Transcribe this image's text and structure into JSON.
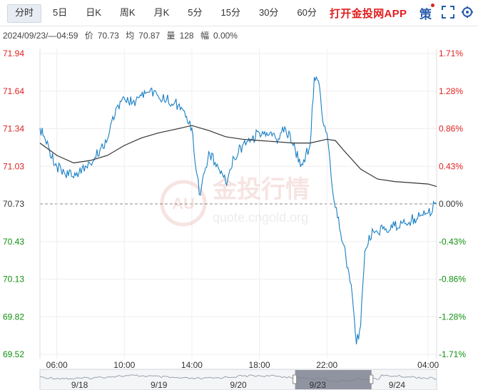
{
  "toolbar": {
    "tabs": [
      {
        "label": "分时",
        "active": true
      },
      {
        "label": "5日",
        "active": false
      },
      {
        "label": "日K",
        "active": false
      },
      {
        "label": "周K",
        "active": false
      },
      {
        "label": "月K",
        "active": false
      },
      {
        "label": "5分",
        "active": false
      },
      {
        "label": "15分",
        "active": false
      },
      {
        "label": "30分",
        "active": false
      },
      {
        "label": "60分",
        "active": false
      }
    ],
    "promo": "打开金投网APP",
    "policy_label": "策",
    "icons": {
      "fullscreen": "fullscreen-icon",
      "settings": "gear-icon"
    }
  },
  "info": {
    "datetime": "2024/09/23/—04:59",
    "price_label": "价",
    "price": "70.73",
    "avg_label": "均",
    "avg": "70.87",
    "volume_label": "量",
    "volume": "128",
    "change_label": "幅",
    "change": "0.00%"
  },
  "watermark": {
    "brand": "金投行情",
    "url": "quote.cngold.org",
    "logo": "AU"
  },
  "colors": {
    "up": "#e02020",
    "down": "#109010",
    "neutral": "#333333",
    "price_line": "#1a7fc4",
    "avg_line": "#333333",
    "grid": "#eeeeee"
  },
  "chart_data": {
    "type": "line",
    "title": "",
    "prev_close": 70.73,
    "ylim": [
      69.52,
      71.94
    ],
    "y_ticks": [
      "71.94",
      "71.64",
      "71.34",
      "71.03",
      "70.73",
      "70.43",
      "70.13",
      "69.82",
      "69.52"
    ],
    "pct_ticks": [
      "1.71%",
      "1.28%",
      "0.86%",
      "0.43%",
      "0.00%",
      "-0.43%",
      "-0.86%",
      "-1.28%",
      "-1.71%"
    ],
    "x_ticks": [
      "06:00",
      "10:00",
      "14:00",
      "18:00",
      "22:00",
      "04:00"
    ],
    "navigator_dates": [
      "9/18",
      "9/19",
      "9/20",
      "9/23",
      "9/24"
    ],
    "navigator_selected": "9/23",
    "series": [
      {
        "name": "价",
        "x": [
          "05:00",
          "06:00",
          "07:00",
          "07:30",
          "08:00",
          "09:00",
          "09:30",
          "10:00",
          "10:30",
          "11:00",
          "11:30",
          "12:00",
          "13:00",
          "13:30",
          "14:00",
          "14:15",
          "14:30",
          "15:00",
          "15:30",
          "16:00",
          "16:30",
          "17:00",
          "17:30",
          "18:00",
          "18:30",
          "19:00",
          "19:30",
          "20:00",
          "20:30",
          "21:00",
          "21:15",
          "21:30",
          "21:45",
          "22:00",
          "22:15",
          "22:30",
          "23:00",
          "23:30",
          "23:45",
          "00:00",
          "00:15",
          "00:30",
          "01:00",
          "01:30",
          "02:00",
          "02:30",
          "03:00",
          "03:30",
          "04:00",
          "04:30"
        ],
        "values": [
          71.34,
          71.03,
          70.94,
          71.02,
          71.05,
          71.25,
          71.5,
          71.58,
          71.55,
          71.6,
          71.63,
          71.6,
          71.55,
          71.48,
          71.34,
          71.0,
          70.8,
          71.15,
          71.05,
          70.9,
          71.1,
          71.2,
          71.25,
          71.3,
          71.28,
          71.25,
          71.35,
          71.2,
          71.05,
          71.2,
          71.75,
          71.72,
          71.4,
          71.3,
          70.95,
          70.7,
          70.4,
          70.0,
          69.6,
          69.75,
          70.35,
          70.48,
          70.5,
          70.53,
          70.55,
          70.58,
          70.6,
          70.63,
          70.66,
          70.73
        ]
      },
      {
        "name": "均",
        "x": [
          "05:00",
          "06:00",
          "07:00",
          "08:00",
          "09:00",
          "10:00",
          "11:00",
          "12:00",
          "13:00",
          "14:00",
          "15:00",
          "16:00",
          "17:00",
          "18:00",
          "19:00",
          "20:00",
          "21:00",
          "22:00",
          "22:30",
          "23:00",
          "00:00",
          "01:00",
          "02:00",
          "03:00",
          "04:00",
          "04:30"
        ],
        "values": [
          71.22,
          71.12,
          71.06,
          71.08,
          71.12,
          71.2,
          71.26,
          71.3,
          71.33,
          71.36,
          71.32,
          71.27,
          71.25,
          71.24,
          71.23,
          71.22,
          71.22,
          71.25,
          71.24,
          71.16,
          71.01,
          70.93,
          70.91,
          70.9,
          70.89,
          70.87
        ]
      }
    ]
  }
}
